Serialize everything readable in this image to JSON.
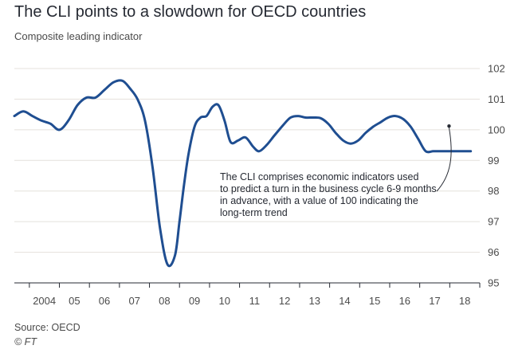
{
  "header": {
    "title": "The CLI points to a slowdown for OECD countries",
    "subtitle": "Composite leading indicator"
  },
  "footer": {
    "source": "Source: OECD",
    "credit": "© FT"
  },
  "colors": {
    "line": "#1f4e91",
    "grid": "#e4e1dc",
    "axis": "#262a33",
    "text": "#262a33"
  },
  "chart_data": {
    "type": "line",
    "title": "The CLI points to a slowdown for OECD countries",
    "subtitle": "Composite leading indicator",
    "xlabel": "",
    "ylabel": "",
    "ylim": [
      95,
      102
    ],
    "yticks": [
      95,
      96,
      97,
      98,
      99,
      100,
      101,
      102
    ],
    "xlim": [
      2003.5,
      2019.0
    ],
    "xtick_labels": [
      "2004",
      "05",
      "06",
      "07",
      "08",
      "09",
      "10",
      "11",
      "12",
      "13",
      "14",
      "15",
      "16",
      "17",
      "18"
    ],
    "grid": true,
    "legend": "none",
    "series": [
      {
        "x": [
          2003.5,
          2003.8,
          2004.1,
          2004.4,
          2004.7,
          2005.0,
          2005.3,
          2005.6,
          2005.9,
          2006.2,
          2006.5,
          2006.8,
          2007.1,
          2007.35,
          2007.6,
          2007.85,
          2008.1,
          2008.35,
          2008.6,
          2008.85,
          2009.0,
          2009.15,
          2009.3,
          2009.5,
          2009.7,
          2009.9,
          2010.1,
          2010.3,
          2010.5,
          2010.7,
          2010.95,
          2011.2,
          2011.45,
          2011.65,
          2011.9,
          2012.15,
          2012.45,
          2012.7,
          2012.95,
          2013.2,
          2013.45,
          2013.7,
          2013.95,
          2014.2,
          2014.45,
          2014.7,
          2014.95,
          2015.2,
          2015.45,
          2015.7,
          2015.95,
          2016.2,
          2016.45,
          2016.7,
          2016.95,
          2017.2,
          2017.45,
          2017.7,
          2017.95,
          2018.2,
          2018.45,
          2018.7
        ],
        "y": [
          100.45,
          100.6,
          100.45,
          100.3,
          100.2,
          100.0,
          100.3,
          100.8,
          101.05,
          101.05,
          101.3,
          101.55,
          101.6,
          101.35,
          101.0,
          100.3,
          98.8,
          96.8,
          95.6,
          95.9,
          97.0,
          98.2,
          99.2,
          100.1,
          100.4,
          100.45,
          100.75,
          100.8,
          100.3,
          99.6,
          99.65,
          99.75,
          99.45,
          99.3,
          99.5,
          99.8,
          100.15,
          100.4,
          100.45,
          100.4,
          100.4,
          100.38,
          100.2,
          99.9,
          99.65,
          99.55,
          99.65,
          99.9,
          100.1,
          100.25,
          100.4,
          100.45,
          100.35,
          100.1,
          99.7,
          99.3,
          99.3,
          99.3,
          99.3,
          99.3,
          99.3,
          99.3
        ]
      }
    ],
    "annotations": [
      {
        "lines": [
          "The CLI comprises economic indicators used",
          "to predict a turn in the business cycle 6-9 months",
          "in advance, with a value of 100 indicating the",
          "long-term trend"
        ],
        "points_to": {
          "x": 2017.95,
          "y": 100.2
        }
      }
    ]
  }
}
